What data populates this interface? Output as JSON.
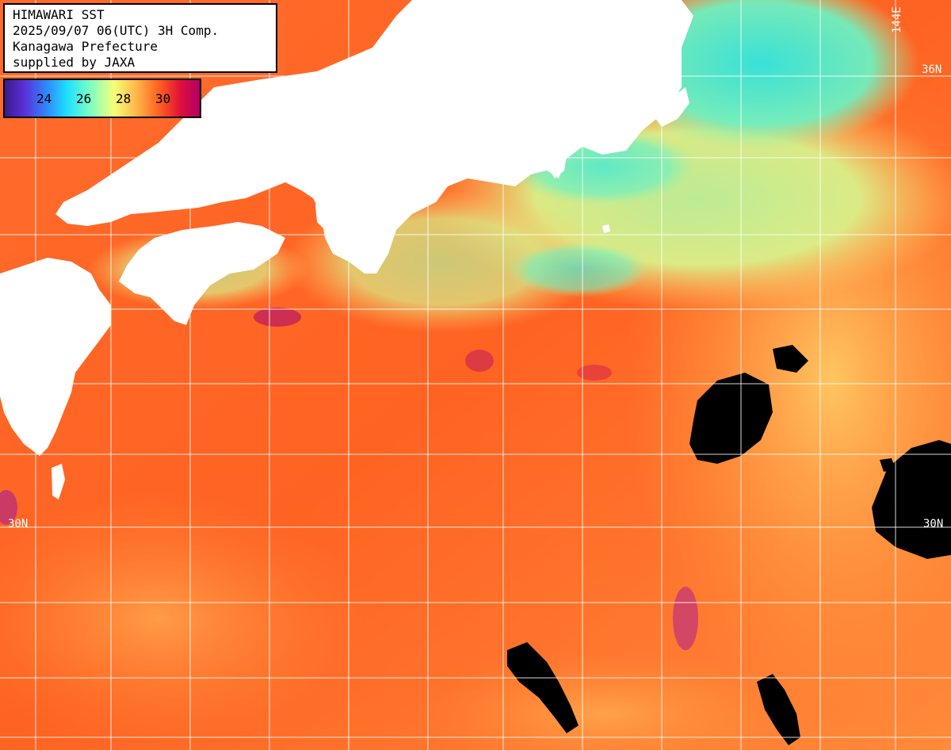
{
  "header": {
    "line1": "HIMAWARI SST",
    "line2": "2025/09/07 06(UTC) 3H Comp.",
    "line3": "Kanagawa Prefecture",
    "line4": "supplied by JAXA"
  },
  "legend": {
    "ticks": [
      "24",
      "26",
      "28",
      "30"
    ],
    "colors": [
      "#3a1a8a",
      "#5a2fd8",
      "#2c8cff",
      "#1fe0ff",
      "#7dffc2",
      "#f6ff7a",
      "#ffb347",
      "#ff5a1e",
      "#e0103a",
      "#b00068"
    ]
  },
  "grid_labels": {
    "lat_36_right": "36N",
    "lat_30_left": "30N",
    "lat_30_right": "30N",
    "lon_144_top": "144E"
  },
  "colors": {
    "land": "#ffffff",
    "no_data": "#000000",
    "warm_water": "#ff7a2a",
    "hot_water": "#f04a1e",
    "cool_water": "#9ff0a8",
    "cyan_water": "#2ee8e0",
    "gridline": "#ffffff"
  }
}
